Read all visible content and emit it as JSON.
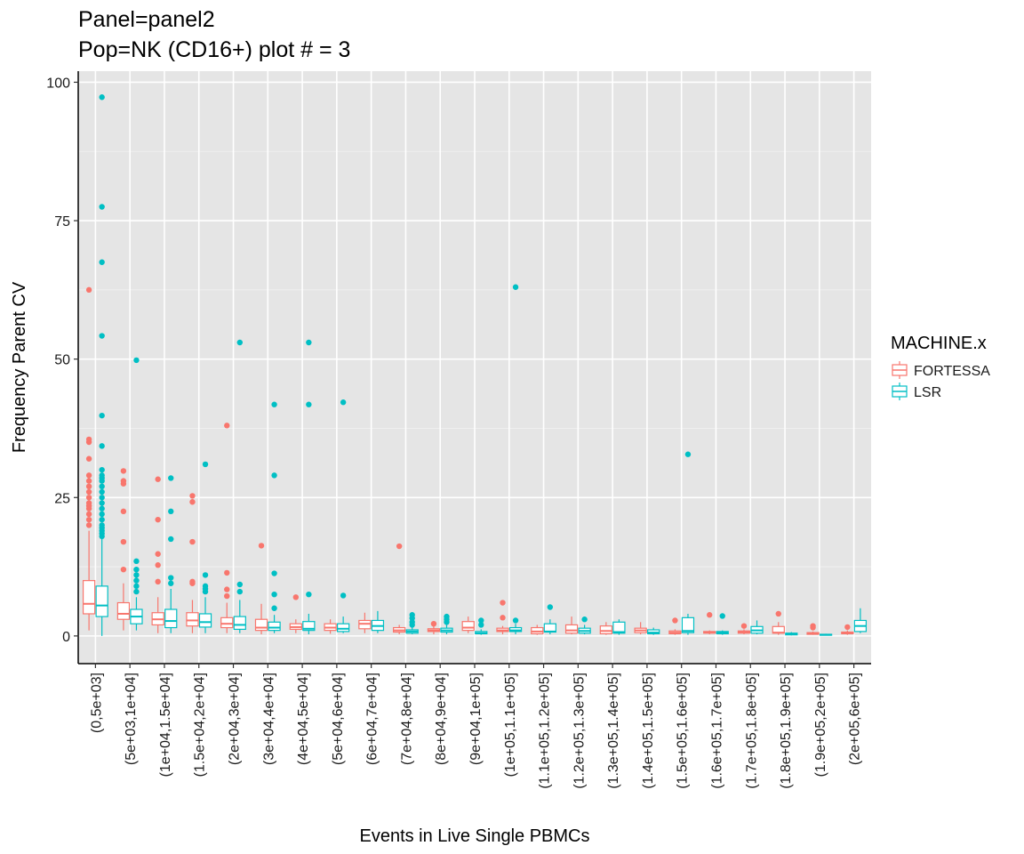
{
  "chart_data": {
    "type": "boxplot",
    "title": "Panel=panel2",
    "subtitle": "Pop=NK (CD16+) plot # = 3",
    "xlabel": "Events in Live Single PBMCs",
    "ylabel": "Frequency Parent CV",
    "ylim": [
      -5,
      102
    ],
    "yticks": [
      0,
      25,
      50,
      75,
      100
    ],
    "grid": true,
    "legend": {
      "title": "MACHINE.x",
      "placement": "right",
      "entries": [
        {
          "name": "FORTESSA",
          "color": "#F8766D"
        },
        {
          "name": "LSR",
          "color": "#00BFC4"
        }
      ]
    },
    "categories": [
      "(0,5e+03]",
      "(5e+03,1e+04]",
      "(1e+04,1.5e+04]",
      "(1.5e+04,2e+04]",
      "(2e+04,3e+04]",
      "(3e+04,4e+04]",
      "(4e+04,5e+04]",
      "(5e+04,6e+04]",
      "(6e+04,7e+04]",
      "(7e+04,8e+04]",
      "(8e+04,9e+04]",
      "(9e+04,1e+05]",
      "(1e+05,1.1e+05]",
      "(1.1e+05,1.2e+05]",
      "(1.2e+05,1.3e+05]",
      "(1.3e+05,1.4e+05]",
      "(1.4e+05,1.5e+05]",
      "(1.5e+05,1.6e+05]",
      "(1.6e+05,1.7e+05]",
      "(1.7e+05,1.8e+05]",
      "(1.8e+05,1.9e+05]",
      "(1.9e+05,2e+05]",
      "(2e+05,6e+05]"
    ],
    "series": [
      {
        "name": "FORTESSA",
        "color": "#F8766D",
        "boxes": [
          {
            "min": 1.0,
            "q1": 4.0,
            "median": 5.8,
            "q3": 10.0,
            "max": 19.0,
            "outliers": [
              20,
              21,
              22,
              23,
              23.5,
              24,
              25,
              26,
              27,
              28,
              29,
              32,
              35,
              35.5,
              62.5
            ]
          },
          {
            "min": 1.0,
            "q1": 3.0,
            "median": 4.0,
            "q3": 6.0,
            "max": 9.5,
            "outliers": [
              12,
              17,
              22.5,
              27.5,
              28,
              29.8
            ]
          },
          {
            "min": 0.5,
            "q1": 2.0,
            "median": 3.0,
            "q3": 4.2,
            "max": 7.0,
            "outliers": [
              9.8,
              12.8,
              14.8,
              21,
              28.3
            ]
          },
          {
            "min": 0.5,
            "q1": 1.8,
            "median": 2.8,
            "q3": 4.2,
            "max": 6.5,
            "outliers": [
              9.5,
              9.8,
              17,
              24.2,
              25.3
            ]
          },
          {
            "min": 0.5,
            "q1": 1.5,
            "median": 2.2,
            "q3": 3.3,
            "max": 6.0,
            "outliers": [
              7.2,
              8.4,
              11.4,
              38
            ]
          },
          {
            "min": 0.3,
            "q1": 1.0,
            "median": 1.5,
            "q3": 3.0,
            "max": 5.8,
            "outliers": [
              16.3
            ]
          },
          {
            "min": 0.5,
            "q1": 1.2,
            "median": 1.6,
            "q3": 2.2,
            "max": 3.0,
            "outliers": [
              7.0
            ]
          },
          {
            "min": 0.4,
            "q1": 1.0,
            "median": 1.5,
            "q3": 2.2,
            "max": 3.0,
            "outliers": []
          },
          {
            "min": 0.5,
            "q1": 1.3,
            "median": 2.2,
            "q3": 2.8,
            "max": 4.2,
            "outliers": []
          },
          {
            "min": 0.3,
            "q1": 0.7,
            "median": 1.0,
            "q3": 1.5,
            "max": 2.0,
            "outliers": [
              16.2
            ]
          },
          {
            "min": 0.3,
            "q1": 0.8,
            "median": 1.0,
            "q3": 1.3,
            "max": 1.8,
            "outliers": [
              2.2
            ]
          },
          {
            "min": 0.5,
            "q1": 1.0,
            "median": 1.5,
            "q3": 2.6,
            "max": 3.5,
            "outliers": []
          },
          {
            "min": 0.3,
            "q1": 0.8,
            "median": 1.0,
            "q3": 1.4,
            "max": 1.8,
            "outliers": [
              3.3,
              6.0
            ]
          },
          {
            "min": 0.2,
            "q1": 0.4,
            "median": 0.8,
            "q3": 1.5,
            "max": 2.0,
            "outliers": []
          },
          {
            "min": 0.3,
            "q1": 0.5,
            "median": 1.0,
            "q3": 2.0,
            "max": 3.5,
            "outliers": []
          },
          {
            "min": 0.2,
            "q1": 0.4,
            "median": 0.9,
            "q3": 1.8,
            "max": 2.5,
            "outliers": []
          },
          {
            "min": 0.3,
            "q1": 0.6,
            "median": 1.0,
            "q3": 1.4,
            "max": 2.5,
            "outliers": []
          },
          {
            "min": 0.2,
            "q1": 0.4,
            "median": 0.6,
            "q3": 0.9,
            "max": 1.2,
            "outliers": [
              2.8
            ]
          },
          {
            "min": 0.3,
            "q1": 0.5,
            "median": 0.7,
            "q3": 0.8,
            "max": 1.0,
            "outliers": [
              3.8
            ]
          },
          {
            "min": 0.3,
            "q1": 0.5,
            "median": 0.7,
            "q3": 0.9,
            "max": 1.2,
            "outliers": [
              1.8
            ]
          },
          {
            "min": 0.2,
            "q1": 0.5,
            "median": 0.6,
            "q3": 1.7,
            "max": 2.5,
            "outliers": [
              4.0
            ]
          },
          {
            "min": 0.2,
            "q1": 0.3,
            "median": 0.5,
            "q3": 0.6,
            "max": 0.8,
            "outliers": [
              1.5,
              1.8
            ]
          },
          {
            "min": 0.2,
            "q1": 0.4,
            "median": 0.5,
            "q3": 0.7,
            "max": 1.0,
            "outliers": [
              1.6
            ]
          }
        ]
      },
      {
        "name": "LSR",
        "color": "#00BFC4",
        "boxes": [
          {
            "min": 0.0,
            "q1": 3.5,
            "median": 5.5,
            "q3": 9.0,
            "max": 17.5,
            "outliers": [
              18,
              18.5,
              19,
              19.5,
              20,
              21,
              22,
              23,
              24,
              25,
              26,
              27,
              28,
              28.5,
              29,
              30,
              34.3,
              39.8,
              54.2,
              67.5,
              77.5,
              97.3
            ]
          },
          {
            "min": 1.0,
            "q1": 2.2,
            "median": 3.5,
            "q3": 4.8,
            "max": 7.0,
            "outliers": [
              8,
              9,
              10,
              11,
              12,
              13.5,
              49.8
            ]
          },
          {
            "min": 0.5,
            "q1": 1.5,
            "median": 2.7,
            "q3": 4.8,
            "max": 8.5,
            "outliers": [
              9.5,
              10.5,
              17.5,
              22.5,
              28.5
            ]
          },
          {
            "min": 0.5,
            "q1": 1.6,
            "median": 2.5,
            "q3": 4.0,
            "max": 7.0,
            "outliers": [
              8,
              8.5,
              9,
              11,
              31
            ]
          },
          {
            "min": 0.5,
            "q1": 1.2,
            "median": 2.0,
            "q3": 3.5,
            "max": 6.5,
            "outliers": [
              8,
              9.3,
              53
            ]
          },
          {
            "min": 0.5,
            "q1": 1.0,
            "median": 1.5,
            "q3": 2.5,
            "max": 3.8,
            "outliers": [
              5,
              7.5,
              11.3,
              29,
              41.8
            ]
          },
          {
            "min": 0.3,
            "q1": 1.0,
            "median": 1.3,
            "q3": 2.6,
            "max": 4.0,
            "outliers": [
              7.5,
              41.8,
              53
            ]
          },
          {
            "min": 0.5,
            "q1": 0.8,
            "median": 1.3,
            "q3": 2.2,
            "max": 3.5,
            "outliers": [
              7.3,
              42.2
            ]
          },
          {
            "min": 0.5,
            "q1": 1.0,
            "median": 1.8,
            "q3": 2.8,
            "max": 4.5,
            "outliers": []
          },
          {
            "min": 0.3,
            "q1": 0.5,
            "median": 0.8,
            "q3": 1.1,
            "max": 1.5,
            "outliers": [
              2.0,
              2.5,
              3.2,
              3.8
            ]
          },
          {
            "min": 0.3,
            "q1": 0.7,
            "median": 1.0,
            "q3": 1.4,
            "max": 2.0,
            "outliers": [
              2.5,
              3.0,
              3.5
            ]
          },
          {
            "min": 0.2,
            "q1": 0.4,
            "median": 0.5,
            "q3": 0.8,
            "max": 1.2,
            "outliers": [
              2.0,
              2.8
            ]
          },
          {
            "min": 0.3,
            "q1": 0.8,
            "median": 1.0,
            "q3": 1.5,
            "max": 2.2,
            "outliers": [
              2.8,
              63
            ]
          },
          {
            "min": 0.3,
            "q1": 0.7,
            "median": 0.8,
            "q3": 2.2,
            "max": 3.0,
            "outliers": [
              5.2
            ]
          },
          {
            "min": 0.3,
            "q1": 0.5,
            "median": 0.9,
            "q3": 1.4,
            "max": 2.0,
            "outliers": [
              3.0
            ]
          },
          {
            "min": 0.2,
            "q1": 0.5,
            "median": 0.7,
            "q3": 2.5,
            "max": 3.0,
            "outliers": []
          },
          {
            "min": 0.2,
            "q1": 0.4,
            "median": 0.6,
            "q3": 1.1,
            "max": 1.5,
            "outliers": []
          },
          {
            "min": 0.2,
            "q1": 0.6,
            "median": 0.9,
            "q3": 3.3,
            "max": 4.0,
            "outliers": [
              32.8
            ]
          },
          {
            "min": 0.2,
            "q1": 0.4,
            "median": 0.6,
            "q3": 0.8,
            "max": 1.0,
            "outliers": [
              3.6
            ]
          },
          {
            "min": 0.3,
            "q1": 0.5,
            "median": 1.0,
            "q3": 1.7,
            "max": 2.8,
            "outliers": []
          },
          {
            "min": 0.1,
            "q1": 0.2,
            "median": 0.4,
            "q3": 0.5,
            "max": 0.7,
            "outliers": []
          },
          {
            "min": 0.1,
            "q1": 0.15,
            "median": 0.2,
            "q3": 0.3,
            "max": 0.4,
            "outliers": []
          },
          {
            "min": 0.5,
            "q1": 0.8,
            "median": 1.8,
            "q3": 2.8,
            "max": 5.0,
            "outliers": []
          }
        ]
      }
    ]
  }
}
